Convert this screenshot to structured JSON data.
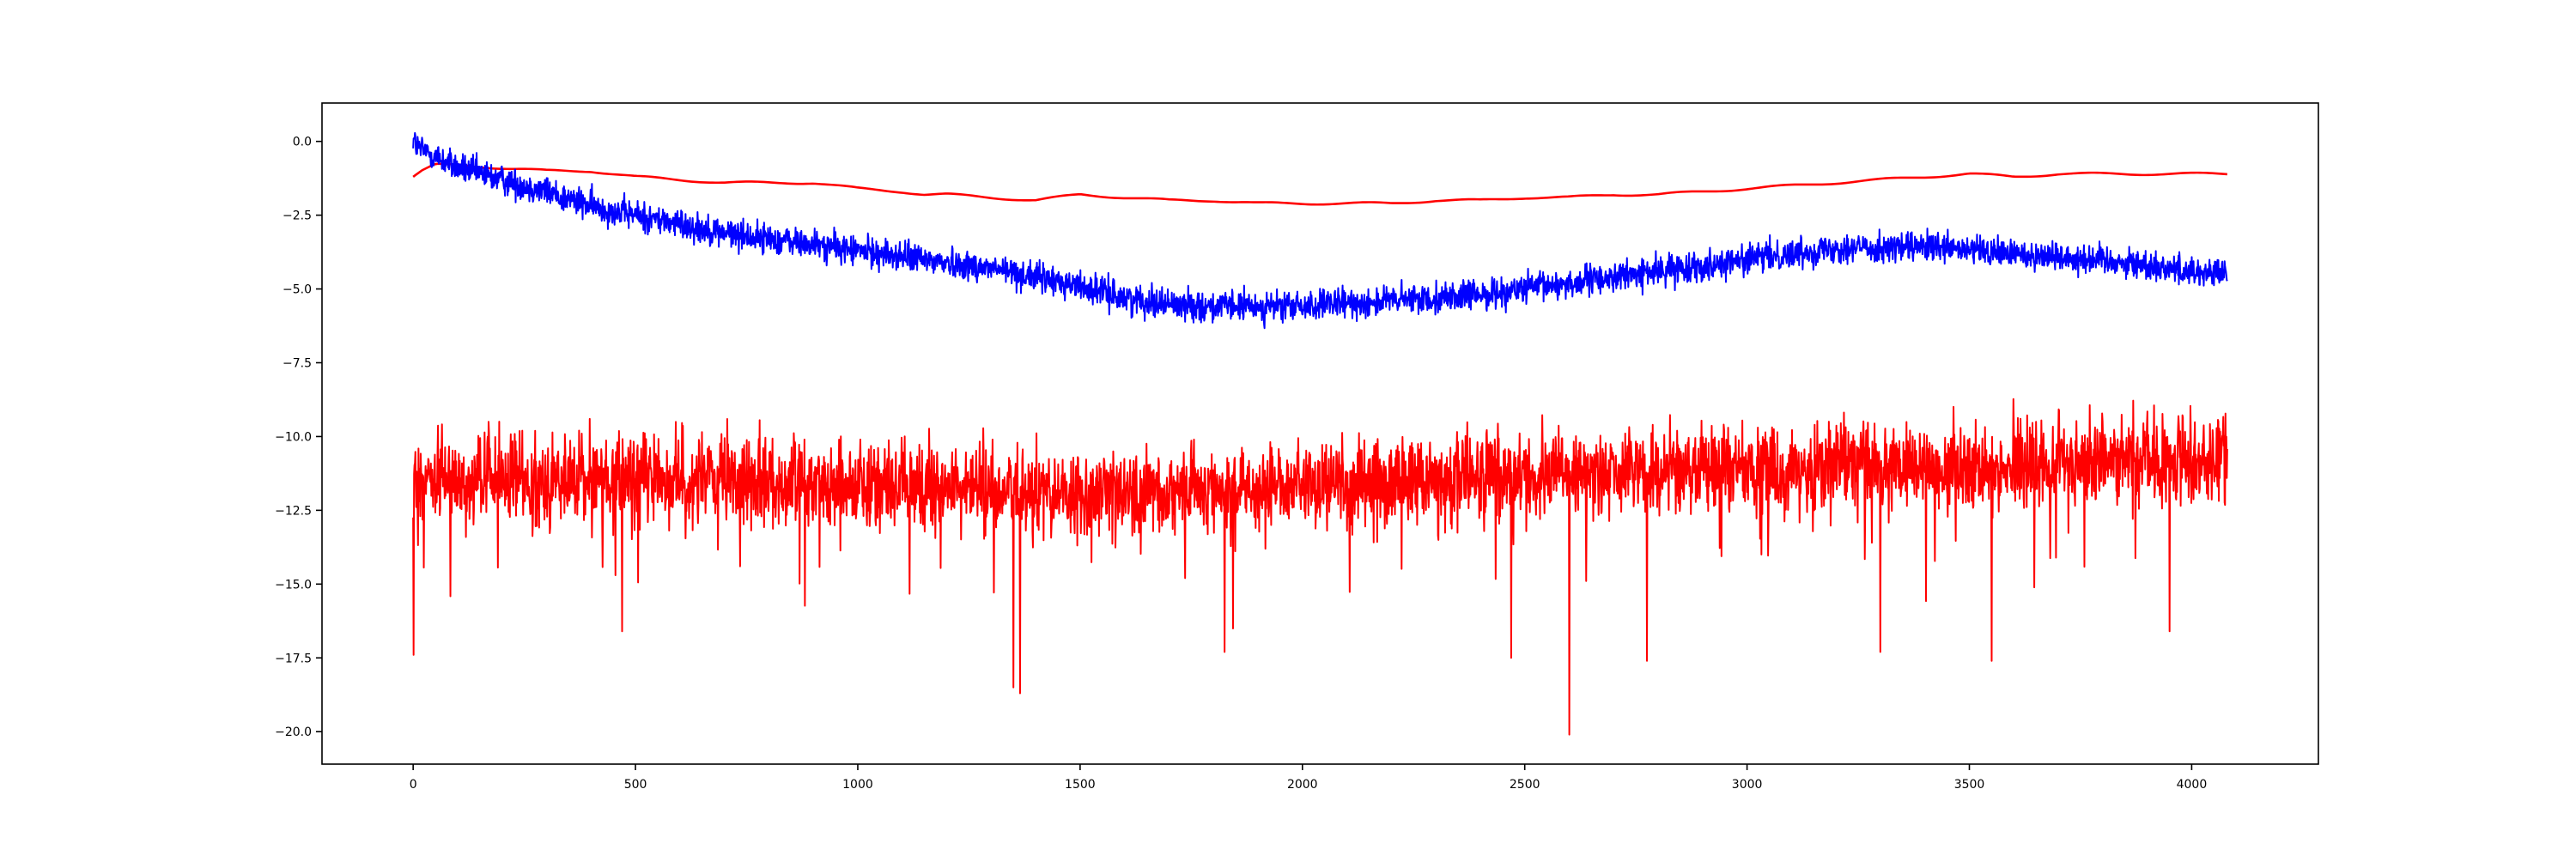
{
  "chart_data": {
    "type": "line",
    "title": "",
    "xlabel": "",
    "ylabel": "",
    "xlim": [
      -205,
      4285
    ],
    "ylim": [
      -21.1,
      1.3
    ],
    "grid": false,
    "legend": "none",
    "x_ticks": [
      0,
      500,
      1000,
      1500,
      2000,
      2500,
      3000,
      3500,
      4000
    ],
    "x_tick_labels": [
      "0",
      "500",
      "1000",
      "1500",
      "2000",
      "2500",
      "3000",
      "3500",
      "4000"
    ],
    "y_ticks": [
      0.0,
      -2.5,
      -5.0,
      -7.5,
      -10.0,
      -12.5,
      -15.0,
      -17.5,
      -20.0
    ],
    "y_tick_labels": [
      "0.0",
      "−2.5",
      "−5.0",
      "−7.5",
      "−10.0",
      "−12.5",
      "−15.0",
      "−17.5",
      "−20.0"
    ],
    "series": [
      {
        "color": "#ff0000",
        "style": "smooth",
        "x": [
          0,
          20,
          50,
          100,
          200,
          300,
          400,
          500,
          600,
          700,
          800,
          900,
          1000,
          1100,
          1150,
          1200,
          1300,
          1400,
          1500,
          1600,
          1700,
          1800,
          1900,
          2000,
          2100,
          2200,
          2300,
          2400,
          2500,
          2600,
          2700,
          2800,
          2900,
          3000,
          3100,
          3200,
          3300,
          3400,
          3500,
          3600,
          3700,
          3800,
          3900,
          4000,
          4080
        ],
        "values": [
          -1.2,
          -1.0,
          -0.8,
          -0.8,
          -0.9,
          -1.0,
          -1.0,
          -1.2,
          -1.3,
          -1.4,
          -1.4,
          -1.4,
          -1.6,
          -1.7,
          -1.8,
          -1.8,
          -1.9,
          -2.0,
          -1.8,
          -1.9,
          -2.0,
          -2.0,
          -2.1,
          -2.1,
          -2.1,
          -2.1,
          -2.0,
          -2.0,
          -1.9,
          -1.9,
          -1.8,
          -1.8,
          -1.7,
          -1.6,
          -1.5,
          -1.4,
          -1.3,
          -1.2,
          -1.1,
          -1.2,
          -1.1,
          -1.1,
          -1.1,
          -1.1,
          -1.1
        ]
      },
      {
        "color": "#0000ff",
        "style": "noisy",
        "x": [
          0,
          10,
          100,
          200,
          300,
          400,
          500,
          600,
          700,
          800,
          900,
          1000,
          1100,
          1200,
          1300,
          1400,
          1500,
          1600,
          1700,
          1800,
          1900,
          2000,
          2100,
          2200,
          2300,
          2400,
          2500,
          2600,
          2700,
          2800,
          2900,
          3000,
          3100,
          3200,
          3300,
          3400,
          3500,
          3600,
          3700,
          3800,
          3900,
          4000,
          4080
        ],
        "values": [
          0.1,
          -0.2,
          -0.9,
          -1.3,
          -1.7,
          -2.2,
          -2.5,
          -2.8,
          -3.1,
          -3.3,
          -3.5,
          -3.7,
          -3.9,
          -4.1,
          -4.3,
          -4.6,
          -4.9,
          -5.3,
          -5.5,
          -5.6,
          -5.6,
          -5.6,
          -5.5,
          -5.4,
          -5.3,
          -5.2,
          -5.0,
          -4.8,
          -4.6,
          -4.4,
          -4.2,
          -4.0,
          -3.8,
          -3.6,
          -3.6,
          -3.6,
          -3.7,
          -3.8,
          -3.9,
          -4.0,
          -4.2,
          -4.4,
          -4.5
        ],
        "noise_amplitude": 0.45,
        "num_points": 4090
      },
      {
        "color": "#ff0000",
        "style": "noisy",
        "x": [
          0,
          500,
          1000,
          1500,
          2000,
          2500,
          3000,
          3500,
          4000,
          4080
        ],
        "values": [
          -11.5,
          -11.4,
          -11.6,
          -12.0,
          -11.6,
          -11.3,
          -11.1,
          -11.0,
          -10.8,
          -10.7
        ],
        "noise_amplitude": 1.3,
        "num_points": 4090,
        "spikes": [
          {
            "x": 1,
            "y": -17.4
          },
          {
            "x": 470,
            "y": -16.6
          },
          {
            "x": 1350,
            "y": -18.5
          },
          {
            "x": 1365,
            "y": -18.7
          },
          {
            "x": 1825,
            "y": -17.3
          },
          {
            "x": 2470,
            "y": -17.5
          },
          {
            "x": 2600,
            "y": -20.1
          },
          {
            "x": 2775,
            "y": -17.6
          },
          {
            "x": 3300,
            "y": -17.3
          },
          {
            "x": 3550,
            "y": -17.6
          },
          {
            "x": 3950,
            "y": -16.6
          }
        ]
      }
    ]
  }
}
